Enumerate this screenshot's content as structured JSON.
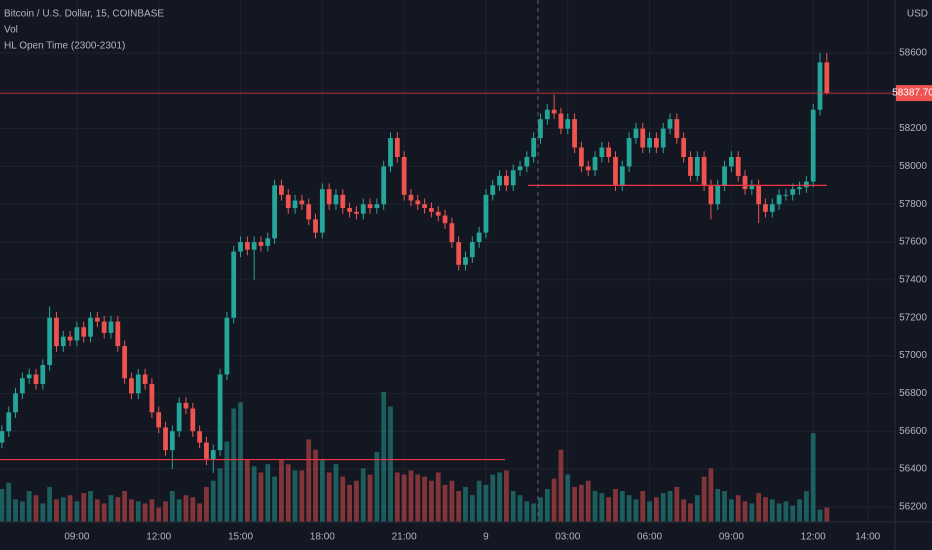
{
  "chart_data": {
    "type": "candlestick",
    "title": "Bitcoin / U.S. Dollar, 15, COINBASE",
    "indicators": [
      "Vol",
      "HL Open Time (2300-2301)"
    ],
    "currency": "USD",
    "up_color": "#26a69a",
    "down_color": "#ef5350",
    "line_color": "#f23645",
    "grid": true,
    "x": [
      6.25,
      6.5,
      6.75,
      7,
      7.25,
      7.5,
      7.75,
      8,
      8.25,
      8.5,
      8.75,
      9,
      9.25,
      9.5,
      9.75,
      10,
      10.25,
      10.5,
      10.75,
      11,
      11.25,
      11.5,
      11.75,
      12,
      12.25,
      12.5,
      12.75,
      13,
      13.25,
      13.5,
      13.75,
      14,
      14.25,
      14.5,
      14.75,
      15,
      15.25,
      15.5,
      15.75,
      16,
      16.25,
      16.5,
      16.75,
      17,
      17.25,
      17.5,
      17.75,
      18,
      18.25,
      18.5,
      18.75,
      19,
      19.25,
      19.5,
      19.75,
      20,
      20.25,
      20.5,
      20.75,
      21,
      21.25,
      21.5,
      21.75,
      22,
      22.25,
      22.5,
      22.75,
      23,
      23.25,
      23.5,
      23.75,
      24,
      24.25,
      24.5,
      24.75,
      25,
      25.25,
      25.5,
      25.75,
      26,
      26.25,
      26.5,
      26.75,
      27,
      27.25,
      27.5,
      27.75,
      28,
      28.25,
      28.5,
      28.75,
      29,
      29.25,
      29.5,
      29.75,
      30,
      30.25,
      30.5,
      30.75,
      31,
      31.25,
      31.5,
      31.75,
      32,
      32.25,
      32.5,
      32.75,
      33,
      33.25,
      33.5,
      33.75,
      34,
      34.25,
      34.5,
      34.75,
      35,
      35.25,
      35.5,
      35.75,
      36,
      36.25,
      36.5
    ],
    "open": [
      56540,
      56600,
      56700,
      56800,
      56880,
      56900,
      56850,
      56950,
      57200,
      57050,
      57100,
      57080,
      57150,
      57100,
      57200,
      57180,
      57120,
      57180,
      57050,
      56880,
      56800,
      56900,
      56850,
      56700,
      56620,
      56500,
      56600,
      56750,
      56720,
      56600,
      56540,
      56450,
      56500,
      56900,
      57200,
      57550,
      57600,
      57560,
      57600,
      57580,
      57620,
      57900,
      57850,
      57780,
      57820,
      57800,
      57720,
      57650,
      57880,
      57800,
      57850,
      57780,
      57760,
      57750,
      57800,
      57780,
      57800,
      58000,
      58150,
      58050,
      57850,
      57820,
      57800,
      57780,
      57760,
      57740,
      57700,
      57600,
      57480,
      57520,
      57600,
      57650,
      57850,
      57900,
      57950,
      57900,
      57980,
      58000,
      58050,
      58150,
      58250,
      58300,
      58280,
      58200,
      58250,
      58100,
      58000,
      57980,
      58050,
      58100,
      58050,
      57900,
      58000,
      58150,
      58200,
      58100,
      58150,
      58100,
      58200,
      58250,
      58150,
      58050,
      57950,
      58050,
      57900,
      57800,
      57900,
      58000,
      58050,
      57950,
      57880,
      57900,
      57800,
      57760,
      57800,
      57850,
      57850,
      57880,
      57890,
      57920,
      58300,
      58550
    ],
    "high": [
      56630,
      56730,
      56830,
      56910,
      56930,
      56930,
      56980,
      57260,
      57230,
      57130,
      57130,
      57180,
      57180,
      57230,
      57230,
      57210,
      57210,
      57210,
      57080,
      56910,
      56930,
      56930,
      56880,
      56730,
      56650,
      56630,
      56780,
      56780,
      56750,
      56630,
      56570,
      56530,
      56930,
      57230,
      57580,
      57630,
      57630,
      57630,
      57630,
      57650,
      57930,
      57930,
      57880,
      57850,
      57850,
      57830,
      57750,
      57910,
      57910,
      57880,
      57880,
      57810,
      57790,
      57830,
      57830,
      57830,
      58030,
      58180,
      58180,
      58080,
      57880,
      57850,
      57830,
      57810,
      57790,
      57770,
      57730,
      57630,
      57550,
      57630,
      57680,
      57880,
      57930,
      57980,
      57980,
      58010,
      58030,
      58080,
      58180,
      58280,
      58330,
      58380,
      58310,
      58280,
      58280,
      58130,
      58030,
      58080,
      58130,
      58130,
      58080,
      58030,
      58180,
      58230,
      58230,
      58180,
      58180,
      58230,
      58280,
      58280,
      58180,
      58080,
      58080,
      58080,
      57930,
      57930,
      58030,
      58080,
      58080,
      57980,
      57930,
      57930,
      57830,
      57830,
      57880,
      57880,
      57910,
      57920,
      57950,
      58330,
      58600,
      58600
    ],
    "low": [
      56510,
      56570,
      56670,
      56770,
      56850,
      56820,
      56820,
      56920,
      57020,
      57020,
      57050,
      57050,
      57070,
      57070,
      57150,
      57090,
      57090,
      57020,
      56850,
      56770,
      56770,
      56820,
      56670,
      56590,
      56470,
      56400,
      56570,
      56690,
      56570,
      56510,
      56420,
      56380,
      56470,
      56870,
      57170,
      57520,
      57530,
      57400,
      57550,
      57550,
      57590,
      57820,
      57750,
      57750,
      57770,
      57690,
      57620,
      57620,
      57770,
      57770,
      57750,
      57730,
      57720,
      57720,
      57750,
      57750,
      57770,
      57970,
      58020,
      57820,
      57790,
      57770,
      57750,
      57730,
      57710,
      57670,
      57570,
      57450,
      57450,
      57490,
      57570,
      57620,
      57820,
      57870,
      57870,
      57870,
      57950,
      57970,
      58020,
      58120,
      58220,
      58250,
      58170,
      58170,
      58070,
      57970,
      57950,
      57950,
      58020,
      58020,
      57870,
      57870,
      57970,
      58120,
      58070,
      58070,
      58070,
      58070,
      58170,
      58120,
      58020,
      57920,
      57920,
      57870,
      57720,
      57770,
      57870,
      57970,
      57920,
      57850,
      57850,
      57700,
      57730,
      57730,
      57770,
      57820,
      57820,
      57850,
      57860,
      57890,
      58270,
      58380
    ],
    "close": [
      56600,
      56700,
      56800,
      56880,
      56900,
      56850,
      56950,
      57200,
      57050,
      57100,
      57080,
      57150,
      57100,
      57200,
      57180,
      57120,
      57180,
      57050,
      56880,
      56800,
      56900,
      56850,
      56700,
      56620,
      56500,
      56600,
      56750,
      56720,
      56600,
      56540,
      56450,
      56500,
      56900,
      57200,
      57550,
      57600,
      57560,
      57600,
      57580,
      57620,
      57900,
      57850,
      57780,
      57820,
      57800,
      57720,
      57650,
      57880,
      57800,
      57850,
      57780,
      57760,
      57750,
      57800,
      57780,
      57800,
      58000,
      58150,
      58050,
      57850,
      57820,
      57800,
      57780,
      57760,
      57740,
      57700,
      57600,
      57480,
      57520,
      57600,
      57650,
      57850,
      57900,
      57950,
      57900,
      57980,
      58000,
      58050,
      58150,
      58250,
      58300,
      58280,
      58200,
      58250,
      58100,
      58000,
      57980,
      58050,
      58100,
      58050,
      57900,
      58000,
      58150,
      58200,
      58100,
      58150,
      58100,
      58200,
      58250,
      58150,
      58050,
      57950,
      58050,
      57900,
      57800,
      57900,
      58000,
      58050,
      57950,
      57880,
      57900,
      57800,
      57760,
      57800,
      57850,
      57850,
      57880,
      57890,
      57920,
      58300,
      58550,
      58387.7
    ],
    "volume": [
      32,
      38,
      22,
      20,
      30,
      26,
      18,
      34,
      22,
      24,
      26,
      20,
      28,
      30,
      22,
      18,
      26,
      24,
      30,
      22,
      20,
      18,
      22,
      14,
      20,
      30,
      22,
      26,
      24,
      18,
      34,
      40,
      52,
      78,
      110,
      116,
      60,
      54,
      48,
      56,
      44,
      60,
      56,
      50,
      50,
      80,
      70,
      60,
      48,
      56,
      44,
      36,
      40,
      52,
      46,
      68,
      126,
      112,
      48,
      46,
      50,
      46,
      44,
      40,
      48,
      36,
      40,
      30,
      34,
      26,
      40,
      36,
      46,
      48,
      50,
      30,
      26,
      20,
      18,
      24,
      32,
      42,
      70,
      46,
      34,
      36,
      40,
      30,
      28,
      24,
      32,
      30,
      26,
      22,
      30,
      20,
      24,
      28,
      30,
      34,
      22,
      18,
      26,
      44,
      52,
      32,
      30,
      22,
      26,
      20,
      18,
      28,
      24,
      22,
      18,
      20,
      16,
      22,
      30,
      86,
      12,
      14
    ],
    "last_price": {
      "value": 58387.7,
      "label": "58387.70"
    },
    "hl_lines": [
      {
        "value": 56450,
        "start": 6.18,
        "end": 24.7
      },
      {
        "value": 57900,
        "start": 25.55,
        "end": 36.5
      }
    ],
    "xlim": [
      6.18,
      39.0
    ],
    "ylim": [
      56120,
      58880
    ],
    "xticks": [
      {
        "value": 9,
        "label": "09:00"
      },
      {
        "value": 12,
        "label": "12:00"
      },
      {
        "value": 15,
        "label": "15:00"
      },
      {
        "value": 18,
        "label": "18:00"
      },
      {
        "value": 21,
        "label": "21:00"
      },
      {
        "value": 24,
        "label": "9"
      },
      {
        "value": 27,
        "label": "03:00"
      },
      {
        "value": 30,
        "label": "06:00"
      },
      {
        "value": 33,
        "label": "09:00"
      },
      {
        "value": 36,
        "label": "12:00"
      },
      {
        "value": 38,
        "label": "14:00"
      }
    ],
    "yticks": [
      56200,
      56400,
      56600,
      56800,
      57000,
      57200,
      57400,
      57600,
      57800,
      58000,
      58200,
      58400,
      58600
    ]
  }
}
